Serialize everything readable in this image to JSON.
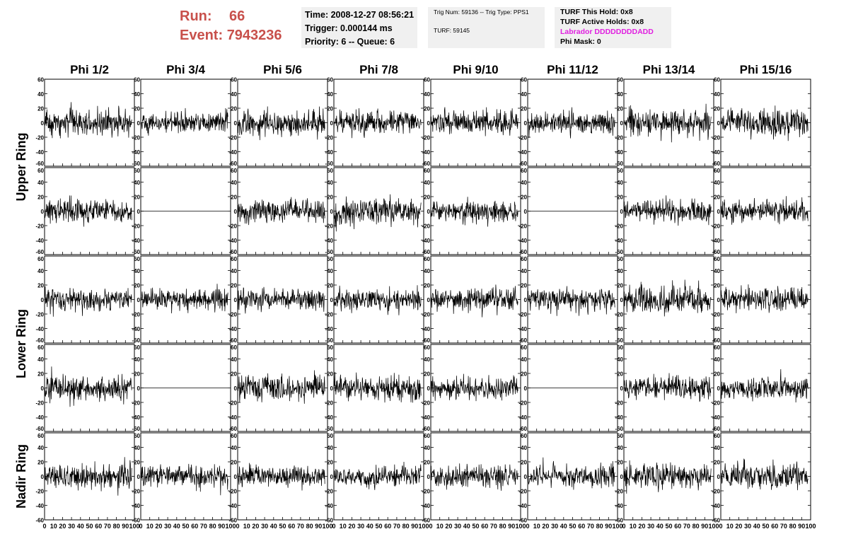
{
  "header": {
    "run_label": "Run:",
    "run_value": "66",
    "event_label": "Event:",
    "event_value": "7943236",
    "time": "Time: 2008-12-27 08:56:21",
    "trigger": "Trigger: 0.000144 ms",
    "priority": "Priority: 6 -- Queue: 6",
    "trig_num": "Trig Num: 59136 -- Trig Type: PPS1",
    "turf": "TURF: 59145",
    "turf_this_hold": "TURF This Hold: 0x8",
    "turf_active_holds": "TURF Active Holds: 0x8",
    "labrador": "Labrador DDDDDDDDADD",
    "phi_mask": "Phi Mask: 0"
  },
  "colors": {
    "run_event": "#c8504b",
    "labrador": "#e020e0",
    "trace": "#000000",
    "box": "#f0f0f0"
  },
  "chart_data": {
    "type": "line",
    "columns": [
      "Phi 1/2",
      "Phi 3/4",
      "Phi 5/6",
      "Phi 7/8",
      "Phi 9/10",
      "Phi 11/12",
      "Phi 13/14",
      "Phi 15/16"
    ],
    "ring_labels": [
      {
        "label": "Upper Ring",
        "rows": [
          0,
          1
        ]
      },
      {
        "label": "Lower Ring",
        "rows": [
          2,
          3
        ]
      },
      {
        "label": "Nadir Ring",
        "rows": [
          4,
          4
        ]
      }
    ],
    "xlim": [
      0,
      100
    ],
    "ylim": [
      -60,
      60
    ],
    "x_ticks": [
      0,
      10,
      20,
      30,
      40,
      50,
      60,
      70,
      80,
      90,
      100
    ],
    "x_tick_labels": [
      "0",
      "10",
      "20",
      "30",
      "40",
      "50",
      "60",
      "70",
      "80",
      "90",
      "100"
    ],
    "y_ticks": [
      -60,
      -40,
      -20,
      0,
      20,
      40,
      60
    ],
    "y_tick_labels": [
      "-60",
      "-40",
      "-20",
      "0",
      "20",
      "40",
      "60"
    ],
    "trace_x_range": [
      0,
      97
    ],
    "flat_channels": [
      [
        1,
        1
      ],
      [
        1,
        5
      ],
      [
        3,
        1
      ],
      [
        3,
        5
      ]
    ],
    "panel_amplitudes": [
      [
        12,
        10,
        12,
        11,
        11,
        10,
        13,
        13
      ],
      [
        11,
        0,
        11,
        12,
        10,
        0,
        11,
        11
      ],
      [
        11,
        10,
        10,
        11,
        10,
        11,
        13,
        11
      ],
      [
        12,
        0,
        12,
        12,
        11,
        0,
        11,
        11
      ],
      [
        12,
        10,
        10,
        10,
        10,
        11,
        12,
        12
      ]
    ]
  }
}
